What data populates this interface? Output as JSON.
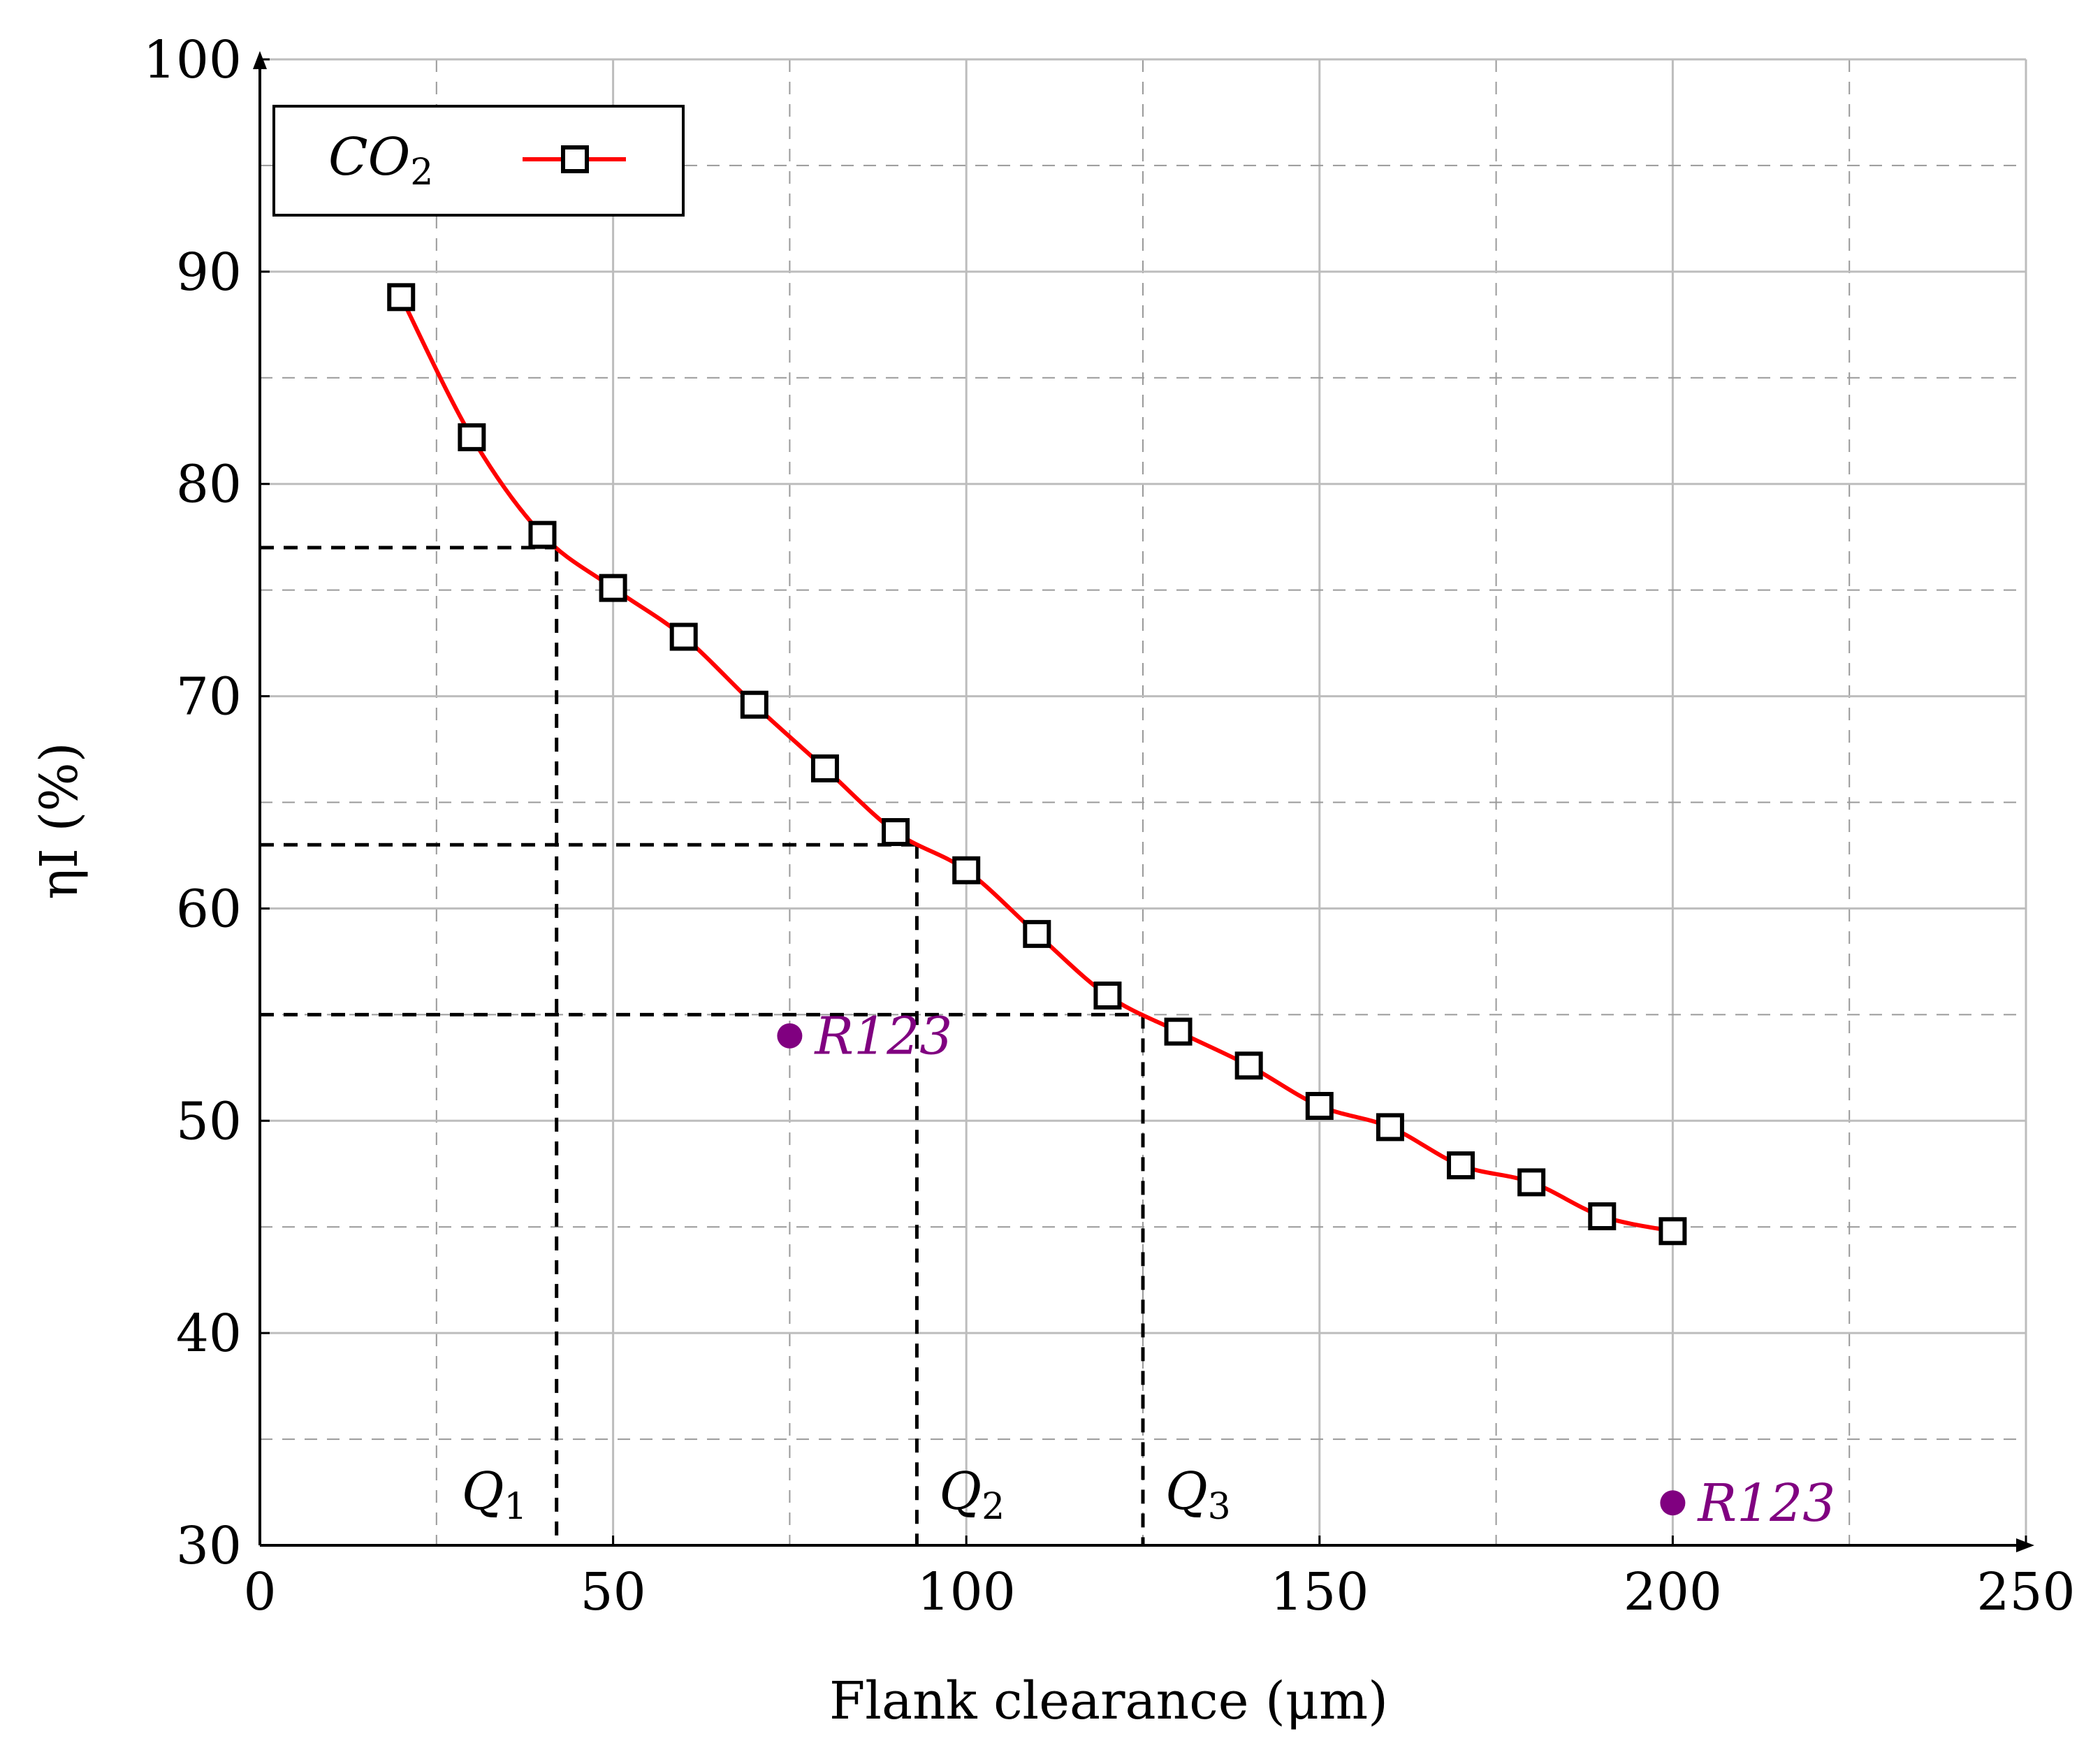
{
  "chart_data": {
    "type": "line",
    "xlabel": "Flank clearance (μm)",
    "ylabel": "ηI (%)",
    "xlim": [
      0,
      250
    ],
    "ylim": [
      30,
      100
    ],
    "x_ticks": [
      0,
      50,
      100,
      150,
      200,
      250
    ],
    "y_ticks": [
      30,
      40,
      50,
      60,
      70,
      80,
      90,
      100
    ],
    "x_tick_labels": [
      "0",
      "50",
      "100",
      "150",
      "200",
      "250"
    ],
    "y_tick_labels": [
      "30",
      "40",
      "50",
      "60",
      "70",
      "80",
      "90",
      "100"
    ],
    "grid": true,
    "legend": {
      "position": "top-left",
      "entries": [
        "CO2"
      ]
    },
    "series": [
      {
        "name": "CO2",
        "color": "#ff0000",
        "marker": "square",
        "x": [
          20,
          30,
          40,
          50,
          60,
          70,
          80,
          90,
          100,
          110,
          120,
          130,
          140,
          150,
          160,
          170,
          180,
          190,
          200
        ],
        "y": [
          88.8,
          82.2,
          77.6,
          75.1,
          72.8,
          69.6,
          66.6,
          63.6,
          61.8,
          58.8,
          55.9,
          54.2,
          52.6,
          50.7,
          49.7,
          47.9,
          47.1,
          45.5,
          44.8
        ]
      }
    ],
    "reference_points": [
      {
        "label": "R123",
        "x": 75,
        "y": 54,
        "color": "#800080"
      },
      {
        "label": "R123",
        "x": 200,
        "y": 32,
        "color": "#800080"
      }
    ],
    "annotations": [
      {
        "label": "Q1",
        "x": 42,
        "y": 77
      },
      {
        "label": "Q2",
        "x": 93,
        "y": 63
      },
      {
        "label": "Q3",
        "x": 125,
        "y": 55
      }
    ]
  }
}
